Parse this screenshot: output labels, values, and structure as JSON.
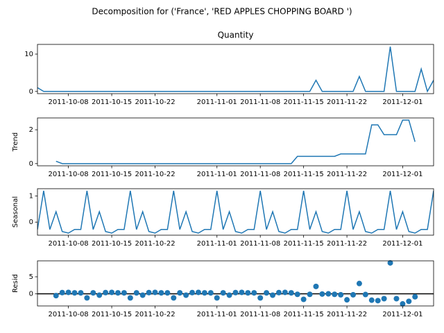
{
  "suptitle": "Decomposition for ('France', 'RED APPLES CHOPPING BOARD   ')",
  "chart_data": [
    {
      "type": "line",
      "title": "Quantity",
      "color": "#1f77b4",
      "x": [
        "2011-10-03",
        "2011-10-04",
        "2011-10-05",
        "2011-10-06",
        "2011-10-07",
        "2011-10-08",
        "2011-10-09",
        "2011-10-10",
        "2011-10-11",
        "2011-10-12",
        "2011-10-13",
        "2011-10-14",
        "2011-10-15",
        "2011-10-16",
        "2011-10-17",
        "2011-10-18",
        "2011-10-19",
        "2011-10-20",
        "2011-10-21",
        "2011-10-22",
        "2011-10-23",
        "2011-10-24",
        "2011-10-25",
        "2011-10-26",
        "2011-10-27",
        "2011-10-28",
        "2011-10-29",
        "2011-10-30",
        "2011-10-31",
        "2011-11-01",
        "2011-11-02",
        "2011-11-03",
        "2011-11-04",
        "2011-11-05",
        "2011-11-06",
        "2011-11-07",
        "2011-11-08",
        "2011-11-09",
        "2011-11-10",
        "2011-11-11",
        "2011-11-12",
        "2011-11-13",
        "2011-11-14",
        "2011-11-15",
        "2011-11-16",
        "2011-11-17",
        "2011-11-18",
        "2011-11-19",
        "2011-11-20",
        "2011-11-21",
        "2011-11-22",
        "2011-11-23",
        "2011-11-24",
        "2011-11-25",
        "2011-11-26",
        "2011-11-27",
        "2011-11-28",
        "2011-11-29",
        "2011-11-30",
        "2011-12-01",
        "2011-12-02",
        "2011-12-03",
        "2011-12-04",
        "2011-12-05",
        "2011-12-06"
      ],
      "values": [
        1,
        0,
        0,
        0,
        0,
        0,
        0,
        0,
        0,
        0,
        0,
        0,
        0,
        0,
        0,
        0,
        0,
        0,
        0,
        0,
        0,
        0,
        0,
        0,
        0,
        0,
        0,
        0,
        0,
        0,
        0,
        0,
        0,
        0,
        0,
        0,
        0,
        0,
        0,
        0,
        0,
        0,
        0,
        0,
        0,
        3,
        0,
        0,
        0,
        0,
        0,
        0,
        4,
        0,
        0,
        0,
        0,
        12,
        0,
        0,
        0,
        0,
        6,
        0,
        3
      ],
      "xlim": [
        "2011-10-03",
        "2011-12-06"
      ],
      "xticks": [
        "2011-10-08",
        "2011-10-15",
        "2011-10-22",
        "2011-11-01",
        "2011-11-08",
        "2011-11-15",
        "2011-11-22",
        "2011-12-01"
      ],
      "ylim": [
        -0.6,
        12.6
      ],
      "yticks": [
        0,
        10
      ]
    },
    {
      "type": "line",
      "ylabel": "Trend",
      "color": "#1f77b4",
      "x": [
        "2011-10-03",
        "2011-10-04",
        "2011-10-05",
        "2011-10-06",
        "2011-10-07",
        "2011-10-08",
        "2011-10-09",
        "2011-10-10",
        "2011-10-11",
        "2011-10-12",
        "2011-10-13",
        "2011-10-14",
        "2011-10-15",
        "2011-10-16",
        "2011-10-17",
        "2011-10-18",
        "2011-10-19",
        "2011-10-20",
        "2011-10-21",
        "2011-10-22",
        "2011-10-23",
        "2011-10-24",
        "2011-10-25",
        "2011-10-26",
        "2011-10-27",
        "2011-10-28",
        "2011-10-29",
        "2011-10-30",
        "2011-10-31",
        "2011-11-01",
        "2011-11-02",
        "2011-11-03",
        "2011-11-04",
        "2011-11-05",
        "2011-11-06",
        "2011-11-07",
        "2011-11-08",
        "2011-11-09",
        "2011-11-10",
        "2011-11-11",
        "2011-11-12",
        "2011-11-13",
        "2011-11-14",
        "2011-11-15",
        "2011-11-16",
        "2011-11-17",
        "2011-11-18",
        "2011-11-19",
        "2011-11-20",
        "2011-11-21",
        "2011-11-22",
        "2011-11-23",
        "2011-11-24",
        "2011-11-25",
        "2011-11-26",
        "2011-11-27",
        "2011-11-28",
        "2011-11-29",
        "2011-11-30",
        "2011-12-01",
        "2011-12-02",
        "2011-12-03",
        "2011-12-04",
        "2011-12-05",
        "2011-12-06"
      ],
      "values": [
        null,
        null,
        null,
        0.14,
        0,
        0,
        0,
        0,
        0,
        0,
        0,
        0,
        0,
        0,
        0,
        0,
        0,
        0,
        0,
        0,
        0,
        0,
        0,
        0,
        0,
        0,
        0,
        0,
        0,
        0,
        0,
        0,
        0,
        0,
        0,
        0,
        0,
        0,
        0,
        0,
        0,
        0,
        0.43,
        0.43,
        0.43,
        0.43,
        0.43,
        0.43,
        0.43,
        0.57,
        0.57,
        0.57,
        0.57,
        0.57,
        2.29,
        2.29,
        1.71,
        1.71,
        1.71,
        2.57,
        2.57,
        1.29,
        null,
        null,
        null
      ],
      "xlim": [
        "2011-10-03",
        "2011-12-06"
      ],
      "xticks": [
        "2011-10-08",
        "2011-10-15",
        "2011-10-22",
        "2011-11-01",
        "2011-11-08",
        "2011-11-15",
        "2011-11-22",
        "2011-12-01"
      ],
      "ylim": [
        -0.13,
        2.7
      ],
      "yticks": [
        0,
        2
      ]
    },
    {
      "type": "line",
      "ylabel": "Seasonal",
      "color": "#1f77b4",
      "x": [
        "2011-10-03",
        "2011-10-04",
        "2011-10-05",
        "2011-10-06",
        "2011-10-07",
        "2011-10-08",
        "2011-10-09",
        "2011-10-10",
        "2011-10-11",
        "2011-10-12",
        "2011-10-13",
        "2011-10-14",
        "2011-10-15",
        "2011-10-16",
        "2011-10-17",
        "2011-10-18",
        "2011-10-19",
        "2011-10-20",
        "2011-10-21",
        "2011-10-22",
        "2011-10-23",
        "2011-10-24",
        "2011-10-25",
        "2011-10-26",
        "2011-10-27",
        "2011-10-28",
        "2011-10-29",
        "2011-10-30",
        "2011-10-31",
        "2011-11-01",
        "2011-11-02",
        "2011-11-03",
        "2011-11-04",
        "2011-11-05",
        "2011-11-06",
        "2011-11-07",
        "2011-11-08",
        "2011-11-09",
        "2011-11-10",
        "2011-11-11",
        "2011-11-12",
        "2011-11-13",
        "2011-11-14",
        "2011-11-15",
        "2011-11-16",
        "2011-11-17",
        "2011-11-18",
        "2011-11-19",
        "2011-11-20",
        "2011-11-21",
        "2011-11-22",
        "2011-11-23",
        "2011-11-24",
        "2011-11-25",
        "2011-11-26",
        "2011-11-27",
        "2011-11-28",
        "2011-11-29",
        "2011-11-30",
        "2011-12-01",
        "2011-12-02",
        "2011-12-03",
        "2011-12-04",
        "2011-12-05",
        "2011-12-06"
      ],
      "values": [
        -0.28,
        1.2,
        -0.28,
        0.4,
        -0.36,
        -0.42,
        -0.28,
        -0.28,
        1.2,
        -0.28,
        0.4,
        -0.36,
        -0.42,
        -0.28,
        -0.28,
        1.2,
        -0.28,
        0.4,
        -0.36,
        -0.42,
        -0.28,
        -0.28,
        1.2,
        -0.28,
        0.4,
        -0.36,
        -0.42,
        -0.28,
        -0.28,
        1.2,
        -0.28,
        0.4,
        -0.36,
        -0.42,
        -0.28,
        -0.28,
        1.2,
        -0.28,
        0.4,
        -0.36,
        -0.42,
        -0.28,
        -0.28,
        1.2,
        -0.28,
        0.4,
        -0.36,
        -0.42,
        -0.28,
        -0.28,
        1.2,
        -0.28,
        0.4,
        -0.36,
        -0.42,
        -0.28,
        -0.28,
        1.2,
        -0.28,
        0.4,
        -0.36,
        -0.42,
        -0.28,
        -0.28,
        1.2
      ],
      "xlim": [
        "2011-10-03",
        "2011-12-06"
      ],
      "xticks": [
        "2011-10-08",
        "2011-10-15",
        "2011-10-22",
        "2011-11-01",
        "2011-11-08",
        "2011-11-15",
        "2011-11-22",
        "2011-12-01"
      ],
      "ylim": [
        -0.5,
        1.28
      ],
      "yticks": [
        0,
        1
      ]
    },
    {
      "type": "scatter",
      "ylabel": "Resid",
      "color": "#1f77b4",
      "hline": 0,
      "x": [
        "2011-10-03",
        "2011-10-04",
        "2011-10-05",
        "2011-10-06",
        "2011-10-07",
        "2011-10-08",
        "2011-10-09",
        "2011-10-10",
        "2011-10-11",
        "2011-10-12",
        "2011-10-13",
        "2011-10-14",
        "2011-10-15",
        "2011-10-16",
        "2011-10-17",
        "2011-10-18",
        "2011-10-19",
        "2011-10-20",
        "2011-10-21",
        "2011-10-22",
        "2011-10-23",
        "2011-10-24",
        "2011-10-25",
        "2011-10-26",
        "2011-10-27",
        "2011-10-28",
        "2011-10-29",
        "2011-10-30",
        "2011-10-31",
        "2011-11-01",
        "2011-11-02",
        "2011-11-03",
        "2011-11-04",
        "2011-11-05",
        "2011-11-06",
        "2011-11-07",
        "2011-11-08",
        "2011-11-09",
        "2011-11-10",
        "2011-11-11",
        "2011-11-12",
        "2011-11-13",
        "2011-11-14",
        "2011-11-15",
        "2011-11-16",
        "2011-11-17",
        "2011-11-18",
        "2011-11-19",
        "2011-11-20",
        "2011-11-21",
        "2011-11-22",
        "2011-11-23",
        "2011-11-24",
        "2011-11-25",
        "2011-11-26",
        "2011-11-27",
        "2011-11-28",
        "2011-11-29",
        "2011-11-30",
        "2011-12-01",
        "2011-12-02",
        "2011-12-03",
        "2011-12-04",
        "2011-12-05",
        "2011-12-06"
      ],
      "values": [
        null,
        null,
        null,
        -0.54,
        0.36,
        0.42,
        0.28,
        0.28,
        -1.2,
        0.28,
        -0.4,
        0.36,
        0.42,
        0.28,
        0.28,
        -1.2,
        0.28,
        -0.4,
        0.36,
        0.42,
        0.28,
        0.28,
        -1.2,
        0.28,
        -0.4,
        0.36,
        0.42,
        0.28,
        0.28,
        -1.2,
        0.28,
        -0.4,
        0.36,
        0.42,
        0.28,
        0.28,
        -1.2,
        0.28,
        -0.4,
        0.36,
        0.42,
        0.28,
        -0.15,
        -1.63,
        -0.15,
        2.17,
        -0.07,
        -0.01,
        -0.15,
        -0.29,
        -1.77,
        -0.29,
        3.03,
        -0.21,
        -1.87,
        -2.01,
        -1.43,
        9.09,
        -1.43,
        -2.97,
        -2.21,
        -0.87,
        null,
        null,
        null
      ],
      "xlim": [
        "2011-10-03",
        "2011-12-06"
      ],
      "xticks": [
        "2011-10-08",
        "2011-10-15",
        "2011-10-22",
        "2011-11-01",
        "2011-11-08",
        "2011-11-15",
        "2011-11-22",
        "2011-12-01"
      ],
      "ylim": [
        -3.57,
        9.69
      ],
      "yticks": [
        0,
        5
      ]
    }
  ]
}
